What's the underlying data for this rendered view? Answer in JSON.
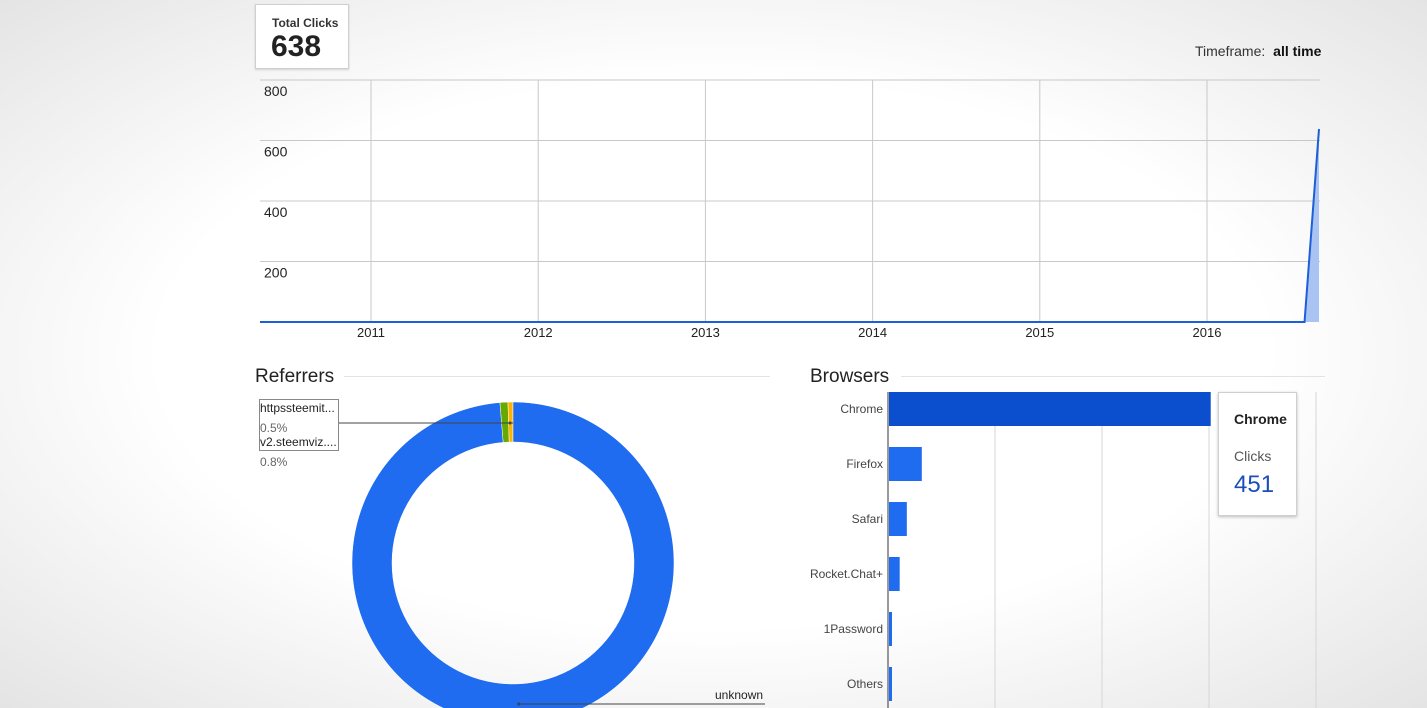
{
  "stat": {
    "label": "Total Clicks",
    "value": "638"
  },
  "timeframe": {
    "label": "Timeframe:",
    "value": "all time"
  },
  "colors": {
    "line": "#1d5fd6",
    "area": "#a9c4f2",
    "bar": "#1f6cf0",
    "bar_selected": "#0b4fcf",
    "donut": "#1f6cf0"
  },
  "chart_data": [
    {
      "type": "area",
      "y_ticks": [
        "800",
        "600",
        "400",
        "200"
      ],
      "x_ticks": [
        "2011",
        "2012",
        "2013",
        "2014",
        "2015",
        "2016"
      ],
      "ylim": [
        0,
        800
      ],
      "grid": true,
      "points": [
        {
          "x": "2010",
          "y": 0
        },
        {
          "x": "2016-08",
          "y": 0
        },
        {
          "x": "2016-09",
          "y": 638
        }
      ]
    },
    {
      "type": "pie",
      "title": "Referrers",
      "slices": [
        {
          "label": "unknown",
          "percent": 98.7
        },
        {
          "label": "httpssteemit...",
          "percent": 0.5
        },
        {
          "label": "v2.steemviz....",
          "percent": 0.8
        }
      ]
    },
    {
      "type": "bar",
      "title": "Browsers",
      "categories": [
        "Chrome",
        "Firefox",
        "Safari",
        "Rocket.Chat+",
        "1Password",
        "Others"
      ],
      "values": [
        451,
        46,
        25,
        15,
        2,
        3
      ],
      "xlim": [
        0,
        600
      ]
    }
  ],
  "referrers": {
    "title": "Referrers",
    "labels": [
      {
        "name": "httpssteemit...",
        "pct": "0.5%"
      },
      {
        "name": "v2.steemviz....",
        "pct": "0.8%"
      }
    ],
    "unknown_label": "unknown"
  },
  "browsers": {
    "title": "Browsers",
    "tooltip": {
      "title": "Chrome",
      "label": "Clicks",
      "value": "451"
    }
  }
}
